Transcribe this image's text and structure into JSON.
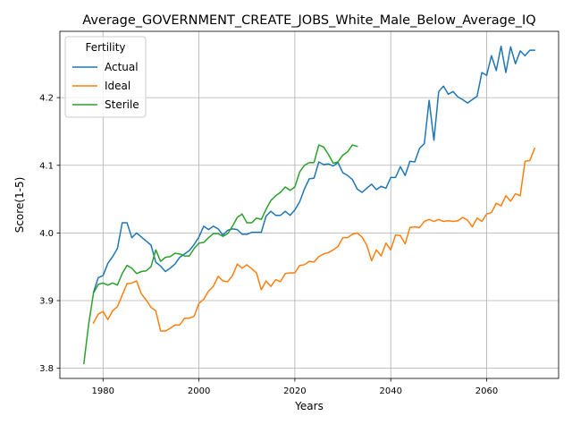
{
  "chart_data": {
    "type": "line",
    "title": "Average_GOVERNMENT_CREATE_JOBS_White_Male_Below_Average_IQ",
    "xlabel": "Years",
    "ylabel": "Score(1-5)",
    "xlim": [
      1971,
      2075
    ],
    "ylim": [
      3.785,
      4.298
    ],
    "xticks": [
      1980,
      2000,
      2020,
      2040,
      2060
    ],
    "yticks": [
      3.8,
      3.9,
      4.0,
      4.1,
      4.2
    ],
    "xtick_labels": [
      "1980",
      "2000",
      "2020",
      "2040",
      "2060"
    ],
    "ytick_labels": [
      "3.8",
      "3.9",
      "4.0",
      "4.1",
      "4.2"
    ],
    "grid": true,
    "legend": {
      "title": "Fertility",
      "placement": "top-left"
    },
    "series": [
      {
        "name": "Actual",
        "color": "#1f77b4",
        "x": [
          1978,
          1979,
          1980,
          1981,
          1982,
          1983,
          1984,
          1985,
          1986,
          1987,
          1988,
          1989,
          1990,
          1991,
          1992,
          1993,
          1994,
          1995,
          1996,
          1997,
          1998,
          1999,
          2000,
          2001,
          2002,
          2003,
          2004,
          2005,
          2006,
          2007,
          2008,
          2009,
          2010,
          2011,
          2012,
          2013,
          2014,
          2015,
          2016,
          2017,
          2018,
          2019,
          2020,
          2021,
          2022,
          2023,
          2024,
          2025,
          2026,
          2027,
          2028,
          2029,
          2030,
          2031,
          2032,
          2033,
          2034,
          2035,
          2036,
          2037,
          2038,
          2039,
          2040,
          2041,
          2042,
          2043,
          2044,
          2045,
          2046,
          2047,
          2048,
          2049,
          2050,
          2051,
          2052,
          2053,
          2054,
          2055,
          2056,
          2057,
          2058,
          2059,
          2060,
          2061,
          2062,
          2063,
          2064,
          2065,
          2066,
          2067,
          2068,
          2069,
          2070
        ],
        "values": [
          3.912,
          3.934,
          3.937,
          3.955,
          3.965,
          3.977,
          4.015,
          4.015,
          3.993,
          4.0,
          3.994,
          3.988,
          3.982,
          3.957,
          3.951,
          3.943,
          3.948,
          3.954,
          3.964,
          3.969,
          3.974,
          3.983,
          3.994,
          4.01,
          4.005,
          4.01,
          4.006,
          3.997,
          4.004,
          4.006,
          4.005,
          3.998,
          3.998,
          4.001,
          4.001,
          4.001,
          4.025,
          4.032,
          4.026,
          4.026,
          4.032,
          4.026,
          4.034,
          4.046,
          4.065,
          4.08,
          4.081,
          4.105,
          4.101,
          4.102,
          4.099,
          4.104,
          4.089,
          4.085,
          4.079,
          4.065,
          4.06,
          4.066,
          4.072,
          4.064,
          4.069,
          4.066,
          4.082,
          4.082,
          4.098,
          4.085,
          4.106,
          4.105,
          4.125,
          4.132,
          4.196,
          4.137,
          4.209,
          4.217,
          4.205,
          4.209,
          4.201,
          4.197,
          4.192,
          4.197,
          4.202,
          4.237,
          4.233,
          4.262,
          4.24,
          4.276,
          4.237,
          4.275,
          4.25,
          4.269,
          4.262,
          4.27,
          4.27
        ]
      },
      {
        "name": "Ideal",
        "color": "#ff7f0e",
        "x": [
          1978,
          1979,
          1980,
          1981,
          1982,
          1983,
          1984,
          1985,
          1986,
          1987,
          1988,
          1989,
          1990,
          1991,
          1992,
          1993,
          1994,
          1995,
          1996,
          1997,
          1998,
          1999,
          2000,
          2001,
          2002,
          2003,
          2004,
          2005,
          2006,
          2007,
          2008,
          2009,
          2010,
          2011,
          2012,
          2013,
          2014,
          2015,
          2016,
          2017,
          2018,
          2019,
          2020,
          2021,
          2022,
          2023,
          2024,
          2025,
          2026,
          2027,
          2028,
          2029,
          2030,
          2031,
          2032,
          2033,
          2034,
          2035,
          2036,
          2037,
          2038,
          2039,
          2040,
          2041,
          2042,
          2043,
          2044,
          2045,
          2046,
          2047,
          2048,
          2049,
          2050,
          2051,
          2052,
          2053,
          2054,
          2055,
          2056,
          2057,
          2058,
          2059,
          2060,
          2061,
          2062,
          2063,
          2064,
          2065,
          2066,
          2067,
          2068,
          2069,
          2070
        ],
        "values": [
          3.867,
          3.88,
          3.884,
          3.872,
          3.885,
          3.891,
          3.908,
          3.925,
          3.926,
          3.929,
          3.91,
          3.901,
          3.89,
          3.885,
          3.855,
          3.855,
          3.859,
          3.864,
          3.864,
          3.874,
          3.874,
          3.877,
          3.896,
          3.902,
          3.914,
          3.921,
          3.936,
          3.929,
          3.928,
          3.937,
          3.954,
          3.948,
          3.953,
          3.947,
          3.941,
          3.916,
          3.929,
          3.921,
          3.931,
          3.928,
          3.94,
          3.941,
          3.941,
          3.952,
          3.953,
          3.958,
          3.957,
          3.965,
          3.969,
          3.971,
          3.975,
          3.98,
          3.993,
          3.993,
          3.998,
          4.0,
          3.994,
          3.982,
          3.959,
          3.975,
          3.966,
          3.985,
          3.975,
          3.997,
          3.996,
          3.984,
          4.008,
          4.009,
          4.008,
          4.017,
          4.02,
          4.017,
          4.02,
          4.017,
          4.018,
          4.017,
          4.018,
          4.023,
          4.019,
          4.009,
          4.022,
          4.017,
          4.028,
          4.03,
          4.044,
          4.04,
          4.055,
          4.047,
          4.058,
          4.055,
          4.106,
          4.107,
          4.125
        ]
      },
      {
        "name": "Sterile",
        "color": "#2ca02c",
        "x": [
          1976,
          1977,
          1978,
          1979,
          1980,
          1981,
          1982,
          1983,
          1984,
          1985,
          1986,
          1987,
          1988,
          1989,
          1990,
          1991,
          1992,
          1993,
          1994,
          1995,
          1996,
          1997,
          1998,
          1999,
          2000,
          2001,
          2002,
          2003,
          2004,
          2005,
          2006,
          2007,
          2008,
          2009,
          2010,
          2011,
          2012,
          2013,
          2014,
          2015,
          2016,
          2017,
          2018,
          2019,
          2020,
          2021,
          2022,
          2023,
          2024,
          2025,
          2026,
          2027,
          2028,
          2029,
          2030,
          2031,
          2032,
          2033
        ],
        "values": [
          3.807,
          3.865,
          3.911,
          3.924,
          3.926,
          3.923,
          3.926,
          3.923,
          3.94,
          3.952,
          3.948,
          3.94,
          3.943,
          3.944,
          3.95,
          3.975,
          3.958,
          3.964,
          3.965,
          3.97,
          3.969,
          3.966,
          3.966,
          3.977,
          3.985,
          3.986,
          3.993,
          3.999,
          3.999,
          3.995,
          3.999,
          4.01,
          4.023,
          4.028,
          4.015,
          4.015,
          4.022,
          4.02,
          4.035,
          4.048,
          4.055,
          4.06,
          4.068,
          4.063,
          4.068,
          4.09,
          4.1,
          4.104,
          4.104,
          4.13,
          4.127,
          4.116,
          4.103,
          4.105,
          4.115,
          4.12,
          4.13,
          4.128
        ]
      }
    ]
  }
}
